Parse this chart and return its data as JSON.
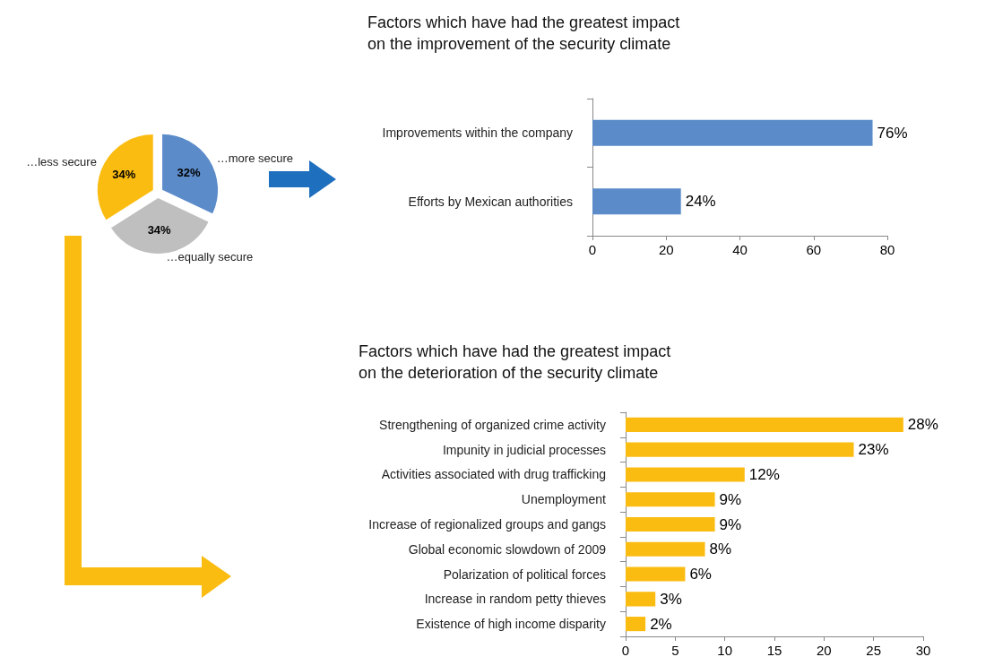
{
  "chart_data": [
    {
      "type": "pie",
      "categories": [
        "…more secure",
        "…equally secure",
        "…less secure"
      ],
      "values": [
        32,
        34,
        34
      ],
      "value_labels": [
        "32%",
        "34%",
        "34%"
      ],
      "colors": [
        "#5b8bc9",
        "#bfbfbf",
        "#fbbc12"
      ],
      "legend": false
    },
    {
      "type": "bar",
      "orientation": "horizontal",
      "title": "Factors which have had the greatest impact\non the improvement of the security climate",
      "categories": [
        "Improvements within the company",
        "Efforts by Mexican authorities"
      ],
      "values": [
        76,
        24
      ],
      "value_labels": [
        "76%",
        "24%"
      ],
      "color": "#5b8bc9",
      "xlim": [
        0,
        80
      ],
      "xticks": [
        0,
        20,
        40,
        60,
        80
      ]
    },
    {
      "type": "bar",
      "orientation": "horizontal",
      "title": "Factors which have had the greatest impact\non the deterioration of the security climate",
      "categories": [
        "Strengthening of organized crime activity",
        "Impunity in judicial processes",
        "Activities associated with drug trafficking",
        "Unemployment",
        "Increase of regionalized groups and gangs",
        "Global economic slowdown of 2009",
        "Polarization of political forces",
        "Increase in random petty thieves",
        "Existence of high income disparity"
      ],
      "values": [
        28,
        23,
        12,
        9,
        9,
        8,
        6,
        3,
        2
      ],
      "value_labels": [
        "28%",
        "23%",
        "12%",
        "9%",
        "9%",
        "8%",
        "6%",
        "3%",
        "2%"
      ],
      "color": "#fbbc12",
      "xlim": [
        0,
        30
      ],
      "xticks": [
        0,
        5,
        10,
        15,
        20,
        25,
        30
      ]
    }
  ]
}
